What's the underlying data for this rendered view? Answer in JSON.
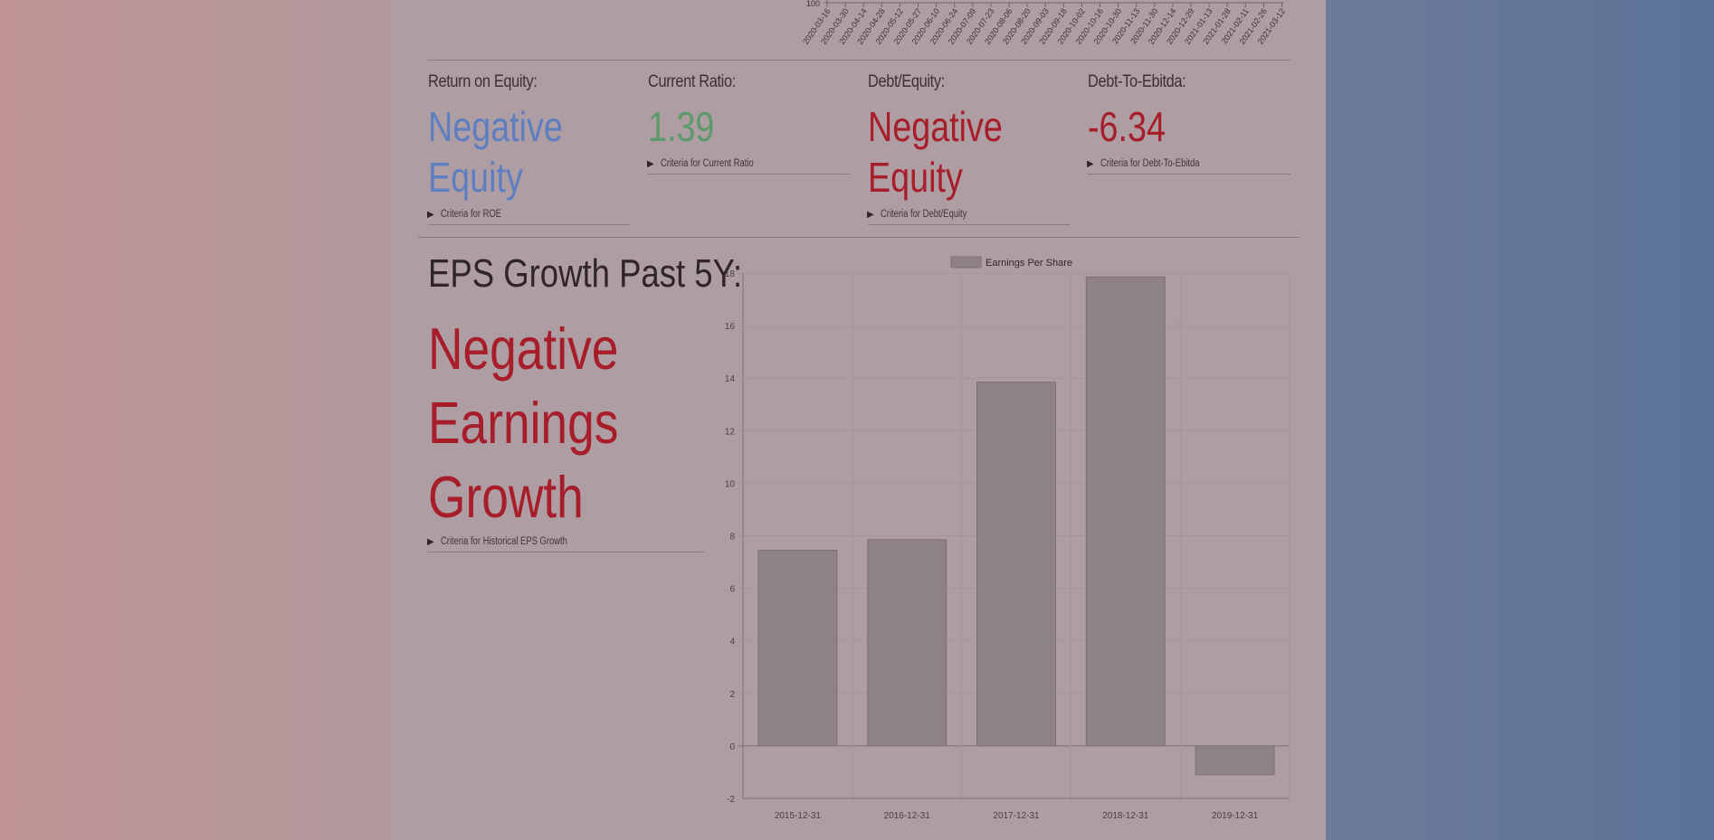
{
  "top_axis": {
    "y_tick": "100",
    "dates": [
      "2020-03-16",
      "2020-03-30",
      "2020-04-14",
      "2020-04-28",
      "2020-05-12",
      "2020-05-27",
      "2020-06-10",
      "2020-06-24",
      "2020-07-09",
      "2020-07-23",
      "2020-08-06",
      "2020-08-20",
      "2020-09-03",
      "2020-09-18",
      "2020-10-02",
      "2020-10-16",
      "2020-10-30",
      "2020-11-13",
      "2020-11-30",
      "2020-12-14",
      "2020-12-29",
      "2021-01-13",
      "2021-01-28",
      "2021-02-11",
      "2021-02-26",
      "2021-03-12"
    ]
  },
  "metrics": [
    {
      "label": "Return on Equity:",
      "value": "Negative Equity",
      "criteria": "Criteria for ROE",
      "color": "#5d7fc1"
    },
    {
      "label": "Current Ratio:",
      "value": "1.39",
      "criteria": "Criteria for Current Ratio",
      "color": "#5c9a6a"
    },
    {
      "label": "Debt/Equity:",
      "value": "Negative Equity",
      "criteria": "Criteria for Debt/Equity",
      "color": "#a81d2a"
    },
    {
      "label": "Debt-To-Ebitda:",
      "value": "-6.34",
      "criteria": "Criteria for Debt-To-Ebitda",
      "color": "#a81d2a"
    }
  ],
  "eps": {
    "title": "EPS Growth Past 5Y:",
    "value": "Negative Earnings Growth",
    "criteria": "Criteria for Historical EPS Growth"
  },
  "chart_data": {
    "type": "bar",
    "categories": [
      "2015-12-31",
      "2016-12-31",
      "2017-12-31",
      "2018-12-31",
      "2019-12-31"
    ],
    "series": [
      {
        "name": "Earnings Per Share",
        "values": [
          7.45,
          7.85,
          13.85,
          17.85,
          -1.1
        ]
      }
    ],
    "ylim": [
      -2,
      18
    ],
    "yticks": [
      -2,
      0,
      2,
      4,
      6,
      8,
      10,
      12,
      14,
      16,
      18
    ],
    "grid": true,
    "legend": "top-center",
    "bar_color": "#8e8288"
  }
}
